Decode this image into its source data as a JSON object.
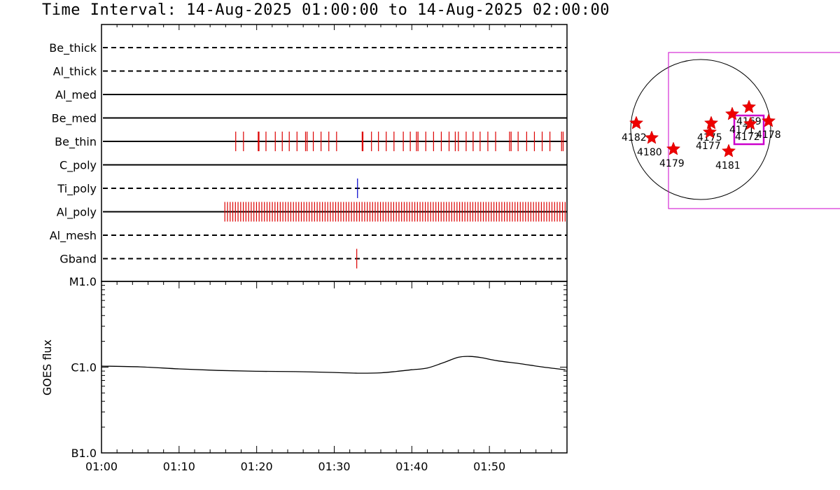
{
  "title": "Time Interval: 14-Aug-2025 01:00:00 to 14-Aug-2025 02:00:00",
  "colors": {
    "red": "#dd0000",
    "blue": "#0000cc",
    "magenta": "#cc00cc",
    "black": "#000000"
  },
  "chart_data": [
    {
      "type": "event-timeline",
      "x_domain_minutes": [
        0,
        60
      ],
      "channels": [
        {
          "name": "Be_thick",
          "style": "dashed",
          "events": []
        },
        {
          "name": "Al_thick",
          "style": "dashed",
          "events": []
        },
        {
          "name": "Al_med",
          "style": "solid",
          "events": []
        },
        {
          "name": "Be_med",
          "style": "solid",
          "events": []
        },
        {
          "name": "Be_thin",
          "style": "solid",
          "color": "red",
          "events": [
            17.3,
            18.3,
            20.2,
            20.3,
            21.2,
            22.4,
            23.3,
            24.2,
            25.2,
            26.3,
            26.5,
            27.3,
            28.3,
            29.3,
            30.3,
            33.6,
            33.7,
            34.8,
            35.7,
            36.7,
            37.7,
            38.9,
            39.8,
            40.6,
            40.8,
            41.8,
            42.8,
            43.8,
            44.8,
            45.6,
            46.0,
            47.0,
            47.9,
            48.8,
            49.8,
            50.8,
            52.6,
            52.8,
            53.7,
            54.8,
            55.8,
            56.8,
            57.8,
            59.3,
            59.5
          ]
        },
        {
          "name": "C_poly",
          "style": "solid",
          "events": []
        },
        {
          "name": "Ti_poly",
          "style": "dashed",
          "color": "blue",
          "events": [
            33.0
          ]
        },
        {
          "name": "Al_poly",
          "style": "solid",
          "color": "red",
          "dense_range": [
            15.9,
            60.0
          ],
          "dense_step": 0.34
        },
        {
          "name": "Al_mesh",
          "style": "dashed",
          "events": []
        },
        {
          "name": "Gband",
          "style": "dashed",
          "color": "red",
          "events": [
            32.9
          ]
        }
      ]
    },
    {
      "type": "line",
      "ylabel": "GOES flux",
      "yscale": "log",
      "yticks": [
        "B1.0",
        "C1.0",
        "M1.0"
      ],
      "x_ticks": [
        "01:00",
        "01:10",
        "01:20",
        "01:30",
        "01:40",
        "01:50"
      ],
      "x_minutes": [
        0,
        5,
        10,
        15,
        20,
        25,
        30,
        33,
        36,
        38,
        40,
        42,
        44,
        46,
        47.5,
        49,
        51,
        54,
        57,
        59.8
      ],
      "y_logC": [
        0.012,
        0.003,
        -0.02,
        -0.038,
        -0.048,
        -0.052,
        -0.062,
        -0.07,
        -0.066,
        -0.05,
        -0.03,
        -0.01,
        0.05,
        0.115,
        0.125,
        0.11,
        0.075,
        0.04,
        0.0,
        -0.03
      ]
    }
  ],
  "sun_map": {
    "regions": [
      {
        "num": "4169"
      },
      {
        "num": "4171"
      },
      {
        "num": "4172"
      },
      {
        "num": "4175"
      },
      {
        "num": "4177"
      },
      {
        "num": "4178"
      },
      {
        "num": "4179"
      },
      {
        "num": "4180"
      },
      {
        "num": "4181"
      },
      {
        "num": "4182"
      }
    ]
  }
}
